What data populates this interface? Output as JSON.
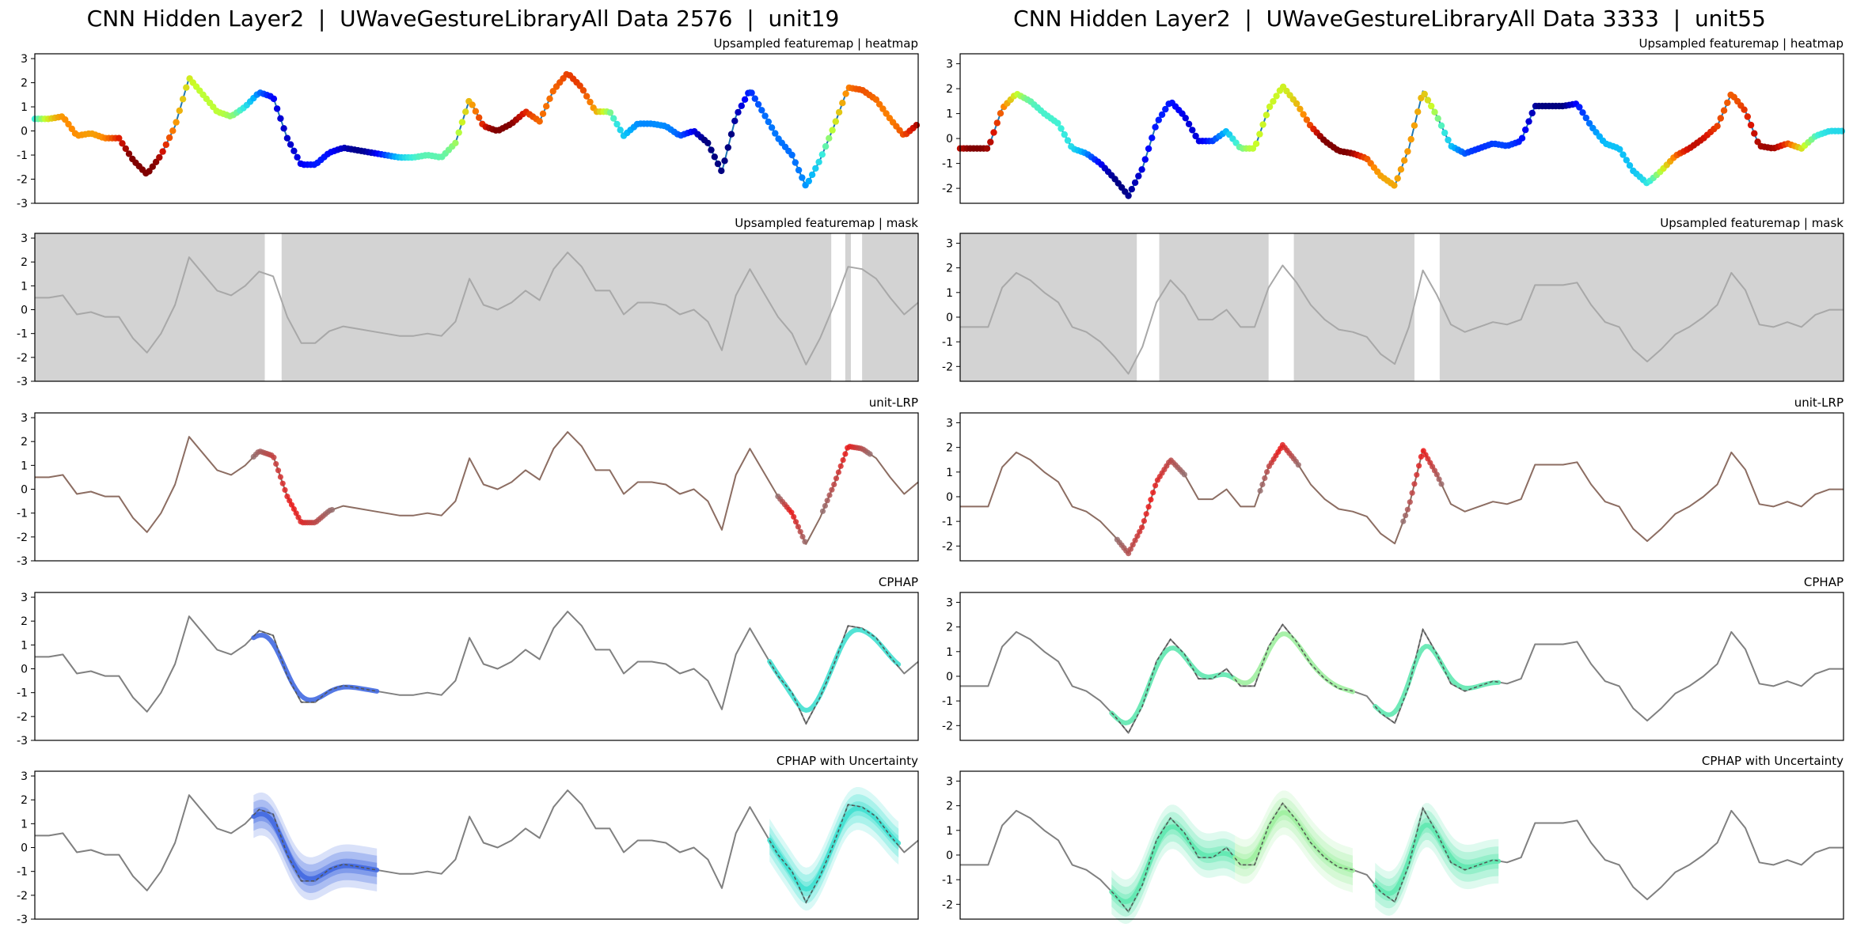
{
  "figure": {
    "titles": [
      "CNN Hidden Layer2  |  UWaveGestureLibraryAll Data 2576  |  unit19",
      "CNN Hidden Layer2  |  UWaveGestureLibraryAll Data 3333  |  unit55"
    ],
    "panel_titles": [
      "Upsampled featuremap | heatmap",
      "Upsampled featuremap | mask",
      "unit-LRP",
      "CPHAP",
      "CPHAP with Uncertainty"
    ],
    "yticks_left": [
      "-3",
      "-2",
      "-1",
      "0",
      "1",
      "2",
      "3"
    ],
    "yticks_right": [
      "-2",
      "-1",
      "0",
      "1",
      "2",
      "3"
    ]
  },
  "colors": {
    "series_gray": "#808080",
    "lrp_base": "#8c6d62",
    "mask_fill": "#d3d3d3",
    "cphap_blue": "#4169e1",
    "cphap_cyan": "#40e0d0",
    "cphap_mint": "#5fe8b0",
    "cphap_lightgreen": "#9ef0a0"
  },
  "chart_data": [
    {
      "type": "line",
      "panel": "left",
      "title": "CNN Hidden Layer2  |  UWaveGestureLibraryAll Data 2576  |  unit19",
      "x": [
        0,
        5,
        10,
        15,
        20,
        25,
        30,
        35,
        40,
        45,
        50,
        55,
        60,
        65,
        70,
        75,
        80,
        85,
        90,
        95,
        100,
        105,
        110,
        115,
        120,
        125,
        130,
        135,
        140,
        145,
        150,
        155,
        160,
        165,
        170,
        175,
        180,
        185,
        190,
        195,
        200,
        205,
        210,
        215,
        220,
        225,
        230,
        235,
        240,
        245,
        250,
        255,
        260,
        265,
        270,
        275,
        280,
        285,
        290,
        295,
        300,
        305,
        310,
        315
      ],
      "y": [
        0.5,
        0.5,
        0.6,
        -0.2,
        -0.1,
        -0.3,
        -0.3,
        -1.2,
        -1.8,
        -1.0,
        0.2,
        2.2,
        1.5,
        0.8,
        0.6,
        1.0,
        1.6,
        1.4,
        -0.3,
        -1.4,
        -1.4,
        -0.9,
        -0.7,
        -0.8,
        -0.9,
        -1.0,
        -1.1,
        -1.1,
        -1.0,
        -1.1,
        -0.5,
        1.3,
        0.2,
        0.0,
        0.3,
        0.8,
        0.4,
        1.7,
        2.4,
        1.8,
        0.8,
        0.8,
        -0.2,
        0.3,
        0.3,
        0.2,
        -0.2,
        0.0,
        -0.5,
        -1.7,
        0.6,
        1.7,
        0.7,
        -0.3,
        -1.0,
        -2.3,
        -1.2,
        0.2,
        1.8,
        1.7,
        1.3,
        0.5,
        -0.2,
        0.3
      ],
      "ylim": [
        -3,
        3.2
      ],
      "mask_visible": [
        [
          82,
          88
        ],
        [
          284,
          289
        ],
        [
          291,
          295
        ]
      ],
      "lrp_relevant": [
        [
          78,
          106
        ],
        [
          265,
          275
        ],
        [
          281,
          298
        ]
      ],
      "cphap": [
        {
          "color": "blue",
          "x_range": [
            78,
            122
          ]
        },
        {
          "color": "cyan",
          "x_range": [
            262,
            308
          ]
        }
      ]
    },
    {
      "type": "line",
      "panel": "right",
      "title": "CNN Hidden Layer2  |  UWaveGestureLibraryAll Data 3333  |  unit55",
      "x": [
        0,
        5,
        10,
        15,
        20,
        25,
        30,
        35,
        40,
        45,
        50,
        55,
        60,
        65,
        70,
        75,
        80,
        85,
        90,
        95,
        100,
        105,
        110,
        115,
        120,
        125,
        130,
        135,
        140,
        145,
        150,
        155,
        160,
        165,
        170,
        175,
        180,
        185,
        190,
        195,
        200,
        205,
        210,
        215,
        220,
        225,
        230,
        235,
        240,
        245,
        250,
        255,
        260,
        265,
        270,
        275,
        280,
        285,
        290,
        295,
        300,
        305,
        310,
        315
      ],
      "y": [
        -0.4,
        -0.4,
        -0.4,
        1.2,
        1.8,
        1.5,
        1.0,
        0.6,
        -0.4,
        -0.6,
        -1.0,
        -1.6,
        -2.3,
        -1.2,
        0.6,
        1.5,
        0.9,
        -0.1,
        -0.1,
        0.3,
        -0.4,
        -0.4,
        1.2,
        2.1,
        1.4,
        0.5,
        -0.1,
        -0.5,
        -0.6,
        -0.8,
        -1.5,
        -1.9,
        -0.4,
        1.9,
        0.9,
        -0.3,
        -0.6,
        -0.4,
        -0.2,
        -0.3,
        -0.1,
        1.3,
        1.3,
        1.3,
        1.4,
        0.5,
        -0.2,
        -0.4,
        -1.3,
        -1.8,
        -1.3,
        -0.7,
        -0.4,
        0.0,
        0.5,
        1.8,
        1.1,
        -0.3,
        -0.4,
        -0.2,
        -0.4,
        0.1,
        0.3,
        0.3
      ],
      "ylim": [
        -2.6,
        3.4
      ],
      "mask_visible": [
        [
          63,
          71
        ],
        [
          110,
          119
        ],
        [
          162,
          171
        ]
      ],
      "lrp_relevant": [
        [
          56,
          80
        ],
        [
          107,
          121
        ],
        [
          158,
          172
        ]
      ],
      "cphap": [
        {
          "color": "mint",
          "x_range": [
            54,
            98
          ]
        },
        {
          "color": "lightgreen",
          "x_range": [
            98,
            140
          ]
        },
        {
          "color": "mint",
          "x_range": [
            148,
            192
          ]
        }
      ]
    }
  ]
}
